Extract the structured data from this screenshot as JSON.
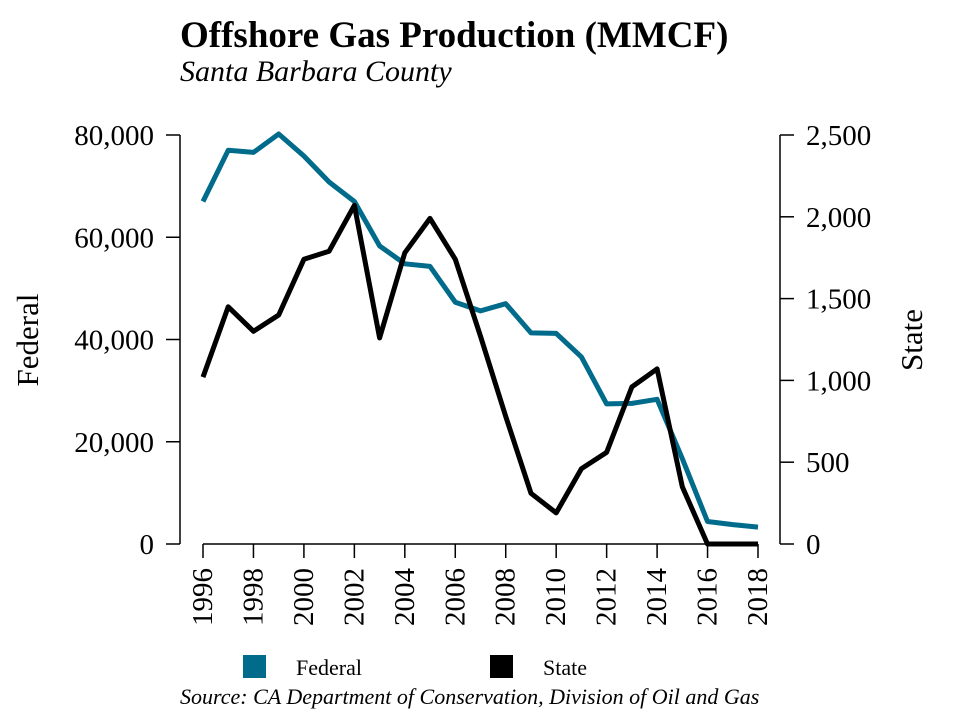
{
  "title": "Offshore Gas Production (MMCF)",
  "subtitle": "Santa Barbara County",
  "source": "Source: CA Department of Conservation, Division of Oil and Gas",
  "chart_data": {
    "type": "line",
    "title": "Offshore Gas Production (MMCF)",
    "subtitle": "Santa Barbara County",
    "xlabel": "",
    "ylabel_left": "Federal",
    "ylabel_right": "State",
    "x": [
      1996,
      1997,
      1998,
      1999,
      2000,
      2001,
      2002,
      2003,
      2004,
      2005,
      2006,
      2007,
      2008,
      2009,
      2010,
      2011,
      2012,
      2013,
      2014,
      2015,
      2016,
      2017,
      2018
    ],
    "x_ticks": [
      "1996",
      "1998",
      "2000",
      "2002",
      "2004",
      "2006",
      "2008",
      "2010",
      "2012",
      "2014",
      "2016",
      "2018"
    ],
    "y_left": {
      "range": [
        0,
        80000
      ],
      "ticks": [
        "0",
        "20,000",
        "40,000",
        "60,000",
        "80,000"
      ],
      "tick_values": [
        0,
        20000,
        40000,
        60000,
        80000
      ]
    },
    "y_right": {
      "range": [
        0,
        2500
      ],
      "ticks": [
        "0",
        "500",
        "1,000",
        "1,500",
        "2,000",
        "2,500"
      ],
      "tick_values": [
        0,
        500,
        1000,
        1500,
        2000,
        2500
      ]
    },
    "grid": false,
    "legend_position": "bottom",
    "series": [
      {
        "name": "Federal",
        "axis": "left",
        "color": "#006b8a",
        "values": [
          67000,
          77000,
          76600,
          80200,
          75900,
          70800,
          67000,
          58300,
          54800,
          54300,
          47300,
          45600,
          47000,
          41300,
          41200,
          36600,
          27400,
          27500,
          28300,
          16700,
          4400,
          3800,
          3300
        ]
      },
      {
        "name": "State",
        "axis": "right",
        "color": "#000000",
        "values": [
          1020,
          1450,
          1300,
          1400,
          1740,
          1790,
          2070,
          1260,
          1780,
          1990,
          1740,
          1270,
          780,
          310,
          190,
          460,
          560,
          960,
          1070,
          350,
          0,
          0,
          0
        ]
      }
    ]
  }
}
